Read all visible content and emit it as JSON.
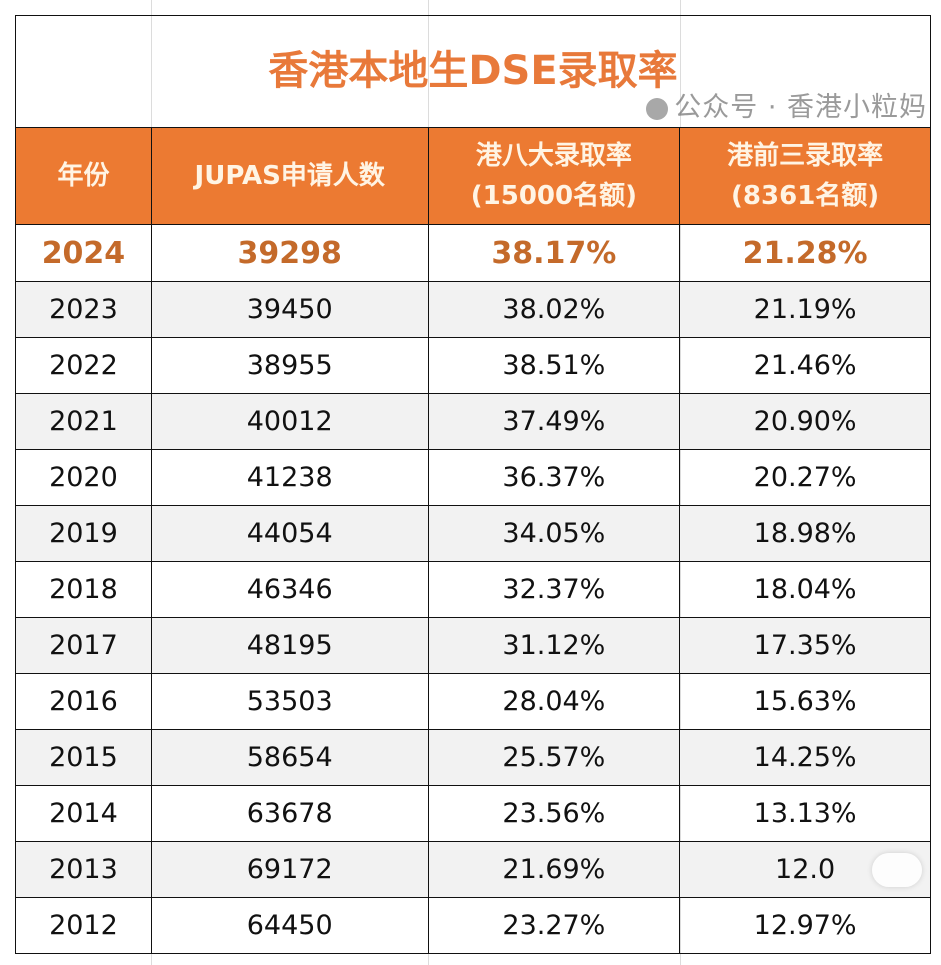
{
  "title": "香港本地生DSE录取率",
  "headers": [
    "年份",
    "JUPAS申请人数",
    "港八大录取率\n(15000名额)",
    "港前三录取率\n(8361名额)"
  ],
  "header_lines": {
    "h3a": "港八大录取率",
    "h3b": "(15000名额)",
    "h4a": "港前三录取率",
    "h4b": "(8361名额)"
  },
  "highlight": {
    "year": "2024",
    "applicants": "39298",
    "top8": "38.17%",
    "top3": "21.28%"
  },
  "rows": [
    {
      "year": "2023",
      "applicants": "39450",
      "top8": "38.02%",
      "top3": "21.19%"
    },
    {
      "year": "2022",
      "applicants": "38955",
      "top8": "38.51%",
      "top3": "21.46%"
    },
    {
      "year": "2021",
      "applicants": "40012",
      "top8": "37.49%",
      "top3": "20.90%"
    },
    {
      "year": "2020",
      "applicants": "41238",
      "top8": "36.37%",
      "top3": "20.27%"
    },
    {
      "year": "2019",
      "applicants": "44054",
      "top8": "34.05%",
      "top3": "18.98%"
    },
    {
      "year": "2018",
      "applicants": "46346",
      "top8": "32.37%",
      "top3": "18.04%"
    },
    {
      "year": "2017",
      "applicants": "48195",
      "top8": "31.12%",
      "top3": "17.35%"
    },
    {
      "year": "2016",
      "applicants": "53503",
      "top8": "28.04%",
      "top3": "15.63%"
    },
    {
      "year": "2015",
      "applicants": "58654",
      "top8": "25.57%",
      "top3": "14.25%"
    },
    {
      "year": "2014",
      "applicants": "63678",
      "top8": "23.56%",
      "top3": "13.13%"
    },
    {
      "year": "2013",
      "applicants": "69172",
      "top8": "21.69%",
      "top3": "12.0"
    },
    {
      "year": "2012",
      "applicants": "64450",
      "top8": "23.27%",
      "top3": "12.97%"
    }
  ],
  "watermark": "公众号 · 香港小粒妈",
  "colors": {
    "header_bg": "#ec7a32",
    "title": "#e8793a",
    "highlight": "#c46a2a",
    "zebra": "#f2f2f2"
  }
}
